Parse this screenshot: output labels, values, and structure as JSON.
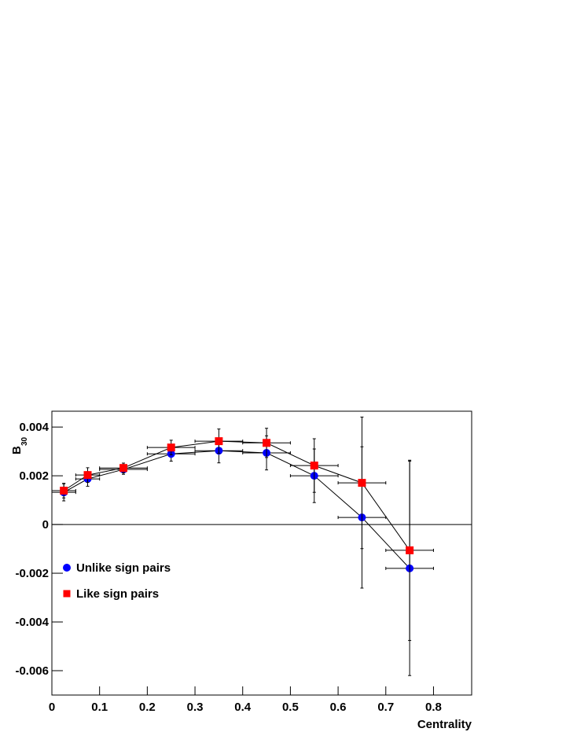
{
  "chart_data": {
    "type": "scatter",
    "x_label": "Centrality",
    "y_label": "B",
    "y_label_sub": "30",
    "xlim": [
      0,
      0.88
    ],
    "ylim": [
      -0.007,
      0.00465
    ],
    "xticks": [
      0,
      0.1,
      0.2,
      0.3,
      0.4,
      0.5,
      0.6,
      0.7,
      0.8
    ],
    "yticks": [
      -0.006,
      -0.004,
      -0.002,
      0,
      0.002,
      0.004
    ],
    "hline": 0,
    "legend": "lower-left",
    "connect": true,
    "series": [
      {
        "name": "Unlike sign pairs",
        "color": "#0000ff",
        "marker": "circle",
        "x": [
          0.025,
          0.075,
          0.15,
          0.25,
          0.35,
          0.45,
          0.55,
          0.65,
          0.75
        ],
        "xerr": [
          0.025,
          0.025,
          0.05,
          0.05,
          0.05,
          0.05,
          0.05,
          0.05,
          0.05
        ],
        "values": [
          0.00132,
          0.00187,
          0.00226,
          0.0029,
          0.00303,
          0.00294,
          0.002,
          0.00029,
          -0.0018
        ],
        "yerr": [
          0.00035,
          0.0003,
          0.0002,
          0.0003,
          0.0005,
          0.0007,
          0.0011,
          0.0029,
          0.0044
        ]
      },
      {
        "name": "Like sign pairs",
        "color": "#ff0000",
        "marker": "square",
        "x": [
          0.025,
          0.075,
          0.15,
          0.25,
          0.35,
          0.45,
          0.55,
          0.65,
          0.75
        ],
        "xerr": [
          0.025,
          0.025,
          0.05,
          0.05,
          0.05,
          0.05,
          0.05,
          0.05,
          0.05
        ],
        "values": [
          0.00139,
          0.00203,
          0.00232,
          0.00316,
          0.00342,
          0.00335,
          0.00242,
          0.00171,
          -0.00106
        ],
        "yerr": [
          0.0003,
          0.0003,
          0.0002,
          0.0003,
          0.0005,
          0.0006,
          0.0011,
          0.0027,
          0.0037
        ]
      }
    ]
  }
}
